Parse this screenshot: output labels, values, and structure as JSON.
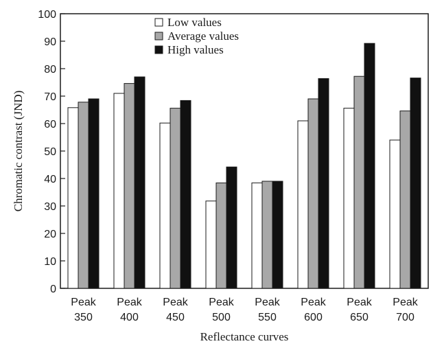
{
  "chart_data": {
    "type": "bar",
    "categories": [
      [
        "Peak",
        "350"
      ],
      [
        "Peak",
        "400"
      ],
      [
        "Peak",
        "450"
      ],
      [
        "Peak",
        "500"
      ],
      [
        "Peak",
        "550"
      ],
      [
        "Peak",
        "600"
      ],
      [
        "Peak",
        "650"
      ],
      [
        "Peak",
        "700"
      ]
    ],
    "series": [
      {
        "name": "Low values",
        "color": "#ffffff",
        "values": [
          65.8,
          71.0,
          60.2,
          31.8,
          38.4,
          61.0,
          65.6,
          54.0
        ]
      },
      {
        "name": "Average values",
        "color": "#a8a8a8",
        "values": [
          67.8,
          74.6,
          65.6,
          38.4,
          39.0,
          69.0,
          77.2,
          64.6
        ]
      },
      {
        "name": "High values",
        "color": "#111111",
        "values": [
          69.0,
          77.0,
          68.4,
          44.2,
          39.0,
          76.4,
          89.2,
          76.6
        ]
      }
    ],
    "xlabel": "Reflectance curves",
    "ylabel": "Chromatic contrast (JND)",
    "ylim": [
      0,
      100
    ],
    "yticks": [
      "0",
      "10",
      "20",
      "30",
      "40",
      "50",
      "60",
      "70",
      "80",
      "90",
      "100"
    ],
    "legend_position": "top-center",
    "grid": false
  }
}
